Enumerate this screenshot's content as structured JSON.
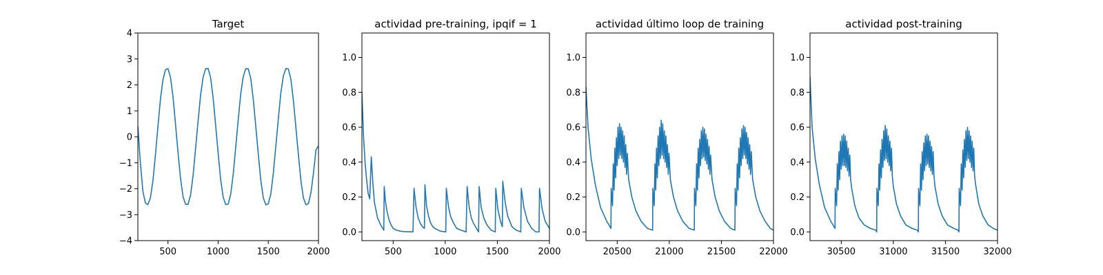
{
  "figure": {
    "background": "#ffffff"
  },
  "chart_data": [
    {
      "type": "line",
      "title": "Target",
      "xlabel": "",
      "ylabel": "",
      "xlim": [
        200,
        2000
      ],
      "ylim": [
        -4,
        4
      ],
      "xticks": [
        500,
        1000,
        1500,
        2000
      ],
      "xtick_labels": [
        "500",
        "1000",
        "1500",
        "2000"
      ],
      "yticks": [
        -4,
        -3,
        -2,
        -1,
        0,
        1,
        2,
        3,
        4
      ],
      "ytick_labels": [
        "−4",
        "−3",
        "−2",
        "−1",
        "0",
        "1",
        "2",
        "3",
        "4"
      ],
      "grid": false,
      "series": [
        {
          "color": "#1f77b4",
          "x": [
            200,
            225,
            250,
            275,
            300,
            325,
            350,
            375,
            400,
            425,
            450,
            475,
            500,
            525,
            550,
            575,
            600,
            625,
            650,
            675,
            700,
            725,
            750,
            775,
            800,
            825,
            850,
            875,
            900,
            925,
            950,
            975,
            1000,
            1025,
            1050,
            1075,
            1100,
            1125,
            1150,
            1175,
            1200,
            1225,
            1250,
            1275,
            1300,
            1325,
            1350,
            1375,
            1400,
            1425,
            1450,
            1475,
            1500,
            1525,
            1550,
            1575,
            1600,
            1625,
            1650,
            1675,
            1700,
            1725,
            1750,
            1775,
            1800,
            1825,
            1850,
            1875,
            1900,
            1925,
            1950,
            1975,
            2000
          ],
          "y": [
            0.4,
            -1.0,
            -2.1,
            -2.55,
            -2.61,
            -2.35,
            -1.7,
            -0.7,
            0.4,
            1.45,
            2.2,
            2.58,
            2.63,
            2.3,
            1.55,
            0.5,
            -0.6,
            -1.6,
            -2.3,
            -2.6,
            -2.6,
            -2.25,
            -1.5,
            -0.45,
            0.6,
            1.6,
            2.3,
            2.62,
            2.63,
            2.28,
            1.5,
            0.45,
            -0.62,
            -1.65,
            -2.32,
            -2.61,
            -2.59,
            -2.22,
            -1.45,
            -0.4,
            0.65,
            1.65,
            2.32,
            2.62,
            2.62,
            2.25,
            1.45,
            0.4,
            -0.66,
            -1.68,
            -2.35,
            -2.62,
            -2.58,
            -2.2,
            -1.4,
            -0.35,
            0.7,
            1.7,
            2.35,
            2.63,
            2.61,
            2.22,
            1.4,
            0.35,
            -0.7,
            -1.7,
            -2.36,
            -2.62,
            -2.57,
            -2.15,
            -1.4,
            -0.5,
            -0.35
          ]
        }
      ]
    },
    {
      "type": "line",
      "title": "actividad pre-training, ipqif = 1",
      "xlabel": "",
      "ylabel": "",
      "xlim": [
        200,
        2000
      ],
      "ylim": [
        -0.05,
        1.14
      ],
      "xticks": [
        500,
        1000,
        1500,
        2000
      ],
      "xtick_labels": [
        "500",
        "1000",
        "1500",
        "2000"
      ],
      "yticks": [
        0.0,
        0.2,
        0.4,
        0.6,
        0.8,
        1.0
      ],
      "ytick_labels": [
        "0.0",
        "0.2",
        "0.4",
        "0.6",
        "0.8",
        "1.0"
      ],
      "grid": false,
      "series": [
        {
          "color": "#1f77b4",
          "x": [
            200,
            215,
            230,
            245,
            260,
            275,
            290,
            305,
            320,
            350,
            380,
            410,
            414,
            425,
            440,
            460,
            480,
            500,
            530,
            560,
            600,
            640,
            690,
            700,
            720,
            740,
            760,
            780,
            800,
            805,
            820,
            840,
            860,
            880,
            900,
            950,
            1005,
            1010,
            1030,
            1050,
            1080,
            1110,
            1150,
            1200,
            1210,
            1230,
            1250,
            1270,
            1300,
            1320,
            1325,
            1345,
            1370,
            1400,
            1440,
            1480,
            1485,
            1505,
            1530,
            1548,
            1552,
            1575,
            1600,
            1640,
            1680,
            1725,
            1730,
            1755,
            1790,
            1830,
            1870,
            1900,
            1905,
            1930,
            1960,
            2000
          ],
          "y": [
            0.8,
            0.55,
            0.4,
            0.3,
            0.22,
            0.19,
            0.43,
            0.28,
            0.17,
            0.08,
            0.04,
            0.01,
            0.26,
            0.18,
            0.12,
            0.07,
            0.04,
            0.02,
            0.01,
            0.005,
            0.002,
            0.001,
            0.0,
            0.25,
            0.14,
            0.08,
            0.05,
            0.03,
            0.02,
            0.27,
            0.15,
            0.09,
            0.05,
            0.03,
            0.02,
            0.005,
            0.0,
            0.25,
            0.15,
            0.09,
            0.05,
            0.02,
            0.01,
            0.0,
            0.26,
            0.14,
            0.08,
            0.05,
            0.02,
            0.0,
            0.26,
            0.14,
            0.08,
            0.04,
            0.01,
            0.0,
            0.25,
            0.13,
            0.06,
            0.03,
            0.29,
            0.17,
            0.09,
            0.03,
            0.01,
            0.0,
            0.25,
            0.14,
            0.06,
            0.02,
            0.0,
            0.0,
            0.25,
            0.13,
            0.06,
            0.02
          ]
        }
      ]
    },
    {
      "type": "line",
      "title": "actividad último loop de training",
      "xlabel": "",
      "ylabel": "",
      "xlim": [
        20200,
        22000
      ],
      "ylim": [
        -0.05,
        1.14
      ],
      "xticks": [
        20500,
        21000,
        21500,
        22000
      ],
      "xtick_labels": [
        "20500",
        "21000",
        "21500",
        "22000"
      ],
      "yticks": [
        0.0,
        0.2,
        0.4,
        0.6,
        0.8,
        1.0
      ],
      "ytick_labels": [
        "0.0",
        "0.2",
        "0.4",
        "0.6",
        "0.8",
        "1.0"
      ],
      "grid": false,
      "series": [
        {
          "color": "#1f77b4",
          "x": [
            20200,
            20220,
            20250,
            20290,
            20340,
            20400,
            20440,
            20442,
            20455,
            20462,
            20470,
            20477,
            20485,
            20492,
            20500,
            20507,
            20515,
            20522,
            20530,
            20537,
            20545,
            20552,
            20560,
            20567,
            20575,
            20582,
            20590,
            20597,
            20610,
            20640,
            20680,
            20730,
            20790,
            20840,
            20842,
            20855,
            20862,
            20870,
            20877,
            20885,
            20892,
            20900,
            20907,
            20915,
            20922,
            20930,
            20937,
            20945,
            20952,
            20960,
            20967,
            20975,
            20982,
            20990,
            20997,
            21010,
            21040,
            21080,
            21130,
            21190,
            21240,
            21242,
            21255,
            21262,
            21270,
            21277,
            21285,
            21292,
            21300,
            21307,
            21315,
            21322,
            21330,
            21337,
            21345,
            21352,
            21360,
            21367,
            21375,
            21382,
            21390,
            21397,
            21410,
            21440,
            21480,
            21530,
            21590,
            21630,
            21632,
            21645,
            21652,
            21660,
            21667,
            21675,
            21682,
            21690,
            21697,
            21705,
            21712,
            21720,
            21727,
            21735,
            21742,
            21750,
            21757,
            21765,
            21772,
            21780,
            21787,
            21800,
            21830,
            21870,
            21920,
            21970,
            22000
          ],
          "y": [
            0.83,
            0.6,
            0.42,
            0.27,
            0.14,
            0.06,
            0.02,
            0.25,
            0.15,
            0.39,
            0.24,
            0.48,
            0.31,
            0.54,
            0.38,
            0.6,
            0.42,
            0.62,
            0.44,
            0.6,
            0.42,
            0.58,
            0.4,
            0.55,
            0.37,
            0.5,
            0.33,
            0.45,
            0.3,
            0.2,
            0.12,
            0.06,
            0.02,
            0.01,
            0.25,
            0.15,
            0.39,
            0.24,
            0.48,
            0.31,
            0.55,
            0.38,
            0.6,
            0.42,
            0.64,
            0.44,
            0.62,
            0.42,
            0.58,
            0.4,
            0.55,
            0.37,
            0.5,
            0.33,
            0.45,
            0.3,
            0.2,
            0.12,
            0.06,
            0.02,
            0.01,
            0.25,
            0.15,
            0.39,
            0.24,
            0.48,
            0.31,
            0.53,
            0.38,
            0.58,
            0.42,
            0.6,
            0.43,
            0.59,
            0.41,
            0.56,
            0.39,
            0.53,
            0.36,
            0.49,
            0.33,
            0.44,
            0.3,
            0.2,
            0.12,
            0.06,
            0.02,
            0.01,
            0.25,
            0.15,
            0.39,
            0.24,
            0.48,
            0.31,
            0.54,
            0.38,
            0.59,
            0.42,
            0.61,
            0.44,
            0.6,
            0.42,
            0.57,
            0.39,
            0.54,
            0.36,
            0.5,
            0.33,
            0.46,
            0.3,
            0.2,
            0.12,
            0.06,
            0.02,
            0.01
          ]
        }
      ]
    },
    {
      "type": "line",
      "title": "actividad post-training",
      "xlabel": "",
      "ylabel": "",
      "xlim": [
        30200,
        32000
      ],
      "ylim": [
        -0.05,
        1.14
      ],
      "xticks": [
        30500,
        31000,
        31500,
        32000
      ],
      "xtick_labels": [
        "30500",
        "31000",
        "31500",
        "32000"
      ],
      "yticks": [
        0.0,
        0.2,
        0.4,
        0.6,
        0.8,
        1.0
      ],
      "ytick_labels": [
        "0.0",
        "0.2",
        "0.4",
        "0.6",
        "0.8",
        "1.0"
      ],
      "grid": false,
      "series": [
        {
          "color": "#1f77b4",
          "x": [
            30200,
            30220,
            30250,
            30290,
            30340,
            30400,
            30440,
            30442,
            30455,
            30462,
            30470,
            30477,
            30485,
            30492,
            30500,
            30507,
            30515,
            30522,
            30530,
            30537,
            30545,
            30552,
            30560,
            30567,
            30575,
            30582,
            30590,
            30600,
            30630,
            30670,
            30720,
            30780,
            30830,
            30840,
            30842,
            30855,
            30862,
            30870,
            30877,
            30885,
            30892,
            30900,
            30907,
            30915,
            30922,
            30930,
            30937,
            30945,
            30952,
            30960,
            30967,
            30975,
            30982,
            30990,
            31000,
            31030,
            31070,
            31120,
            31180,
            31230,
            31240,
            31242,
            31255,
            31262,
            31270,
            31277,
            31285,
            31292,
            31300,
            31307,
            31315,
            31322,
            31330,
            31337,
            31345,
            31352,
            31360,
            31367,
            31375,
            31382,
            31390,
            31400,
            31430,
            31470,
            31520,
            31580,
            31620,
            31630,
            31632,
            31645,
            31652,
            31660,
            31667,
            31675,
            31682,
            31690,
            31697,
            31705,
            31712,
            31720,
            31727,
            31735,
            31742,
            31750,
            31757,
            31765,
            31772,
            31780,
            31790,
            31820,
            31860,
            31910,
            31960,
            32000
          ],
          "y": [
            0.89,
            0.6,
            0.42,
            0.27,
            0.14,
            0.06,
            0.02,
            0.25,
            0.15,
            0.39,
            0.24,
            0.46,
            0.3,
            0.52,
            0.36,
            0.55,
            0.38,
            0.56,
            0.38,
            0.55,
            0.37,
            0.52,
            0.35,
            0.48,
            0.32,
            0.44,
            0.3,
            0.25,
            0.15,
            0.08,
            0.04,
            0.02,
            0.01,
            0.0,
            0.25,
            0.15,
            0.39,
            0.24,
            0.47,
            0.31,
            0.53,
            0.37,
            0.58,
            0.41,
            0.61,
            0.42,
            0.59,
            0.4,
            0.55,
            0.38,
            0.52,
            0.35,
            0.48,
            0.32,
            0.26,
            0.16,
            0.09,
            0.04,
            0.02,
            0.01,
            0.0,
            0.25,
            0.15,
            0.39,
            0.24,
            0.46,
            0.3,
            0.51,
            0.35,
            0.55,
            0.38,
            0.56,
            0.39,
            0.55,
            0.37,
            0.52,
            0.35,
            0.49,
            0.33,
            0.46,
            0.32,
            0.26,
            0.16,
            0.09,
            0.04,
            0.02,
            0.01,
            0.0,
            0.25,
            0.15,
            0.39,
            0.24,
            0.47,
            0.31,
            0.53,
            0.37,
            0.58,
            0.41,
            0.6,
            0.42,
            0.58,
            0.4,
            0.55,
            0.37,
            0.52,
            0.35,
            0.48,
            0.32,
            0.27,
            0.16,
            0.09,
            0.04,
            0.02,
            0.01
          ]
        }
      ]
    }
  ]
}
